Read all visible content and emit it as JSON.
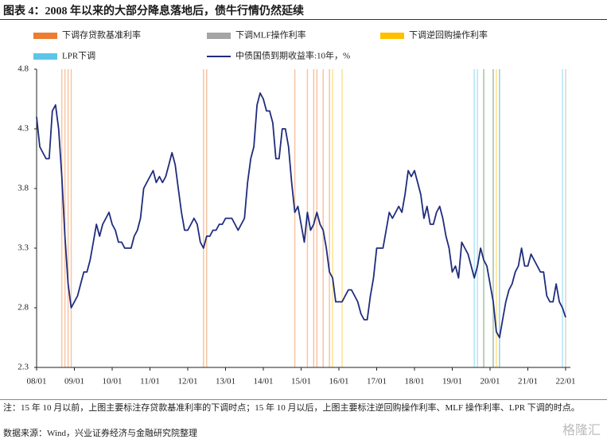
{
  "chart_data": {
    "type": "line",
    "title": "图表 4：2008 年以来的大部分降息落地后，债牛行情仍然延续",
    "note": "注：15 年 10 月以前，上图主要标注存贷款基准利率的下调时点；15 年 10 月以后，上图主要标注逆回购操作利率、MLF 操作利率、LPR 下调的时点。",
    "source": "数据来源：Wind，兴业证券经济与金融研究院整理",
    "watermark": "格隆汇",
    "xlim": [
      "08/01",
      "22/01"
    ],
    "xticks": [
      "08/01",
      "09/01",
      "10/01",
      "11/01",
      "12/01",
      "13/01",
      "14/01",
      "15/01",
      "16/01",
      "17/01",
      "18/01",
      "19/01",
      "20/01",
      "21/01",
      "22/01"
    ],
    "ylim": [
      2.3,
      4.8
    ],
    "yticks": [
      2.3,
      2.8,
      3.3,
      3.8,
      4.3,
      4.8
    ],
    "x": [
      "08/01",
      "08/02",
      "08/03",
      "08/04",
      "08/05",
      "08/06",
      "08/07",
      "08/08",
      "08/09",
      "08/10",
      "08/11",
      "08/12",
      "09/01",
      "09/02",
      "09/03",
      "09/04",
      "09/05",
      "09/06",
      "09/07",
      "09/08",
      "09/09",
      "09/10",
      "09/11",
      "09/12",
      "10/01",
      "10/02",
      "10/03",
      "10/04",
      "10/05",
      "10/06",
      "10/07",
      "10/08",
      "10/09",
      "10/10",
      "10/11",
      "10/12",
      "11/01",
      "11/02",
      "11/03",
      "11/04",
      "11/05",
      "11/06",
      "11/07",
      "11/08",
      "11/09",
      "11/10",
      "11/11",
      "11/12",
      "12/01",
      "12/02",
      "12/03",
      "12/04",
      "12/05",
      "12/06",
      "12/07",
      "12/08",
      "12/09",
      "12/10",
      "12/11",
      "12/12",
      "13/01",
      "13/02",
      "13/03",
      "13/04",
      "13/05",
      "13/06",
      "13/07",
      "13/08",
      "13/09",
      "13/10",
      "13/11",
      "13/12",
      "14/01",
      "14/02",
      "14/03",
      "14/04",
      "14/05",
      "14/06",
      "14/07",
      "14/08",
      "14/09",
      "14/10",
      "14/11",
      "14/12",
      "15/01",
      "15/02",
      "15/03",
      "15/04",
      "15/05",
      "15/06",
      "15/07",
      "15/08",
      "15/09",
      "15/10",
      "15/11",
      "15/12",
      "16/01",
      "16/02",
      "16/03",
      "16/04",
      "16/05",
      "16/06",
      "16/07",
      "16/08",
      "16/09",
      "16/10",
      "16/11",
      "16/12",
      "17/01",
      "17/02",
      "17/03",
      "17/04",
      "17/05",
      "17/06",
      "17/07",
      "17/08",
      "17/09",
      "17/10",
      "17/11",
      "17/12",
      "18/01",
      "18/02",
      "18/03",
      "18/04",
      "18/05",
      "18/06",
      "18/07",
      "18/08",
      "18/09",
      "18/10",
      "18/11",
      "18/12",
      "19/01",
      "19/02",
      "19/03",
      "19/04",
      "19/05",
      "19/06",
      "19/07",
      "19/08",
      "19/09",
      "19/10",
      "19/11",
      "19/12",
      "20/01",
      "20/02",
      "20/03",
      "20/04",
      "20/05",
      "20/06",
      "20/07",
      "20/08",
      "20/09",
      "20/10",
      "20/11",
      "20/12",
      "21/01",
      "21/02",
      "21/03",
      "21/04",
      "21/05",
      "21/06",
      "21/07",
      "21/08",
      "21/09",
      "21/10",
      "21/11",
      "21/12",
      "22/01"
    ],
    "series": [
      {
        "name": "中债国债到期收益率:10年，%",
        "color": "#1f2c7c",
        "values": [
          4.4,
          4.15,
          4.1,
          4.05,
          4.05,
          4.45,
          4.5,
          4.3,
          3.9,
          3.4,
          3.0,
          2.8,
          2.85,
          2.9,
          3.0,
          3.1,
          3.1,
          3.2,
          3.35,
          3.5,
          3.4,
          3.5,
          3.55,
          3.6,
          3.5,
          3.45,
          3.35,
          3.35,
          3.3,
          3.3,
          3.3,
          3.4,
          3.45,
          3.55,
          3.8,
          3.85,
          3.9,
          3.95,
          3.85,
          3.9,
          3.85,
          3.9,
          4.0,
          4.1,
          4.0,
          3.8,
          3.6,
          3.45,
          3.45,
          3.5,
          3.55,
          3.5,
          3.35,
          3.3,
          3.4,
          3.4,
          3.45,
          3.45,
          3.5,
          3.5,
          3.55,
          3.55,
          3.55,
          3.5,
          3.45,
          3.5,
          3.55,
          3.85,
          4.05,
          4.15,
          4.5,
          4.6,
          4.55,
          4.45,
          4.45,
          4.35,
          4.05,
          4.05,
          4.3,
          4.3,
          4.15,
          3.85,
          3.6,
          3.65,
          3.5,
          3.35,
          3.6,
          3.45,
          3.5,
          3.6,
          3.5,
          3.45,
          3.3,
          3.1,
          3.05,
          2.85,
          2.85,
          2.85,
          2.9,
          2.95,
          2.95,
          2.9,
          2.85,
          2.75,
          2.7,
          2.7,
          2.9,
          3.05,
          3.3,
          3.3,
          3.3,
          3.45,
          3.6,
          3.55,
          3.6,
          3.65,
          3.6,
          3.75,
          3.95,
          3.9,
          3.95,
          3.85,
          3.75,
          3.55,
          3.65,
          3.5,
          3.5,
          3.6,
          3.65,
          3.55,
          3.4,
          3.3,
          3.1,
          3.15,
          3.05,
          3.35,
          3.3,
          3.25,
          3.15,
          3.05,
          3.15,
          3.3,
          3.2,
          3.15,
          3.0,
          2.85,
          2.6,
          2.55,
          2.7,
          2.85,
          2.95,
          3.0,
          3.1,
          3.15,
          3.3,
          3.15,
          3.15,
          3.25,
          3.2,
          3.15,
          3.1,
          3.1,
          2.9,
          2.85,
          2.85,
          3.0,
          2.85,
          2.8,
          2.72
        ]
      }
    ],
    "events": [
      {
        "name": "下调存贷款基准利率",
        "color": "#ed7d31",
        "dates": [
          "08/09",
          "08/10",
          "08/11",
          "08/12",
          "12/06",
          "12/07",
          "14/11",
          "15/03",
          "15/05",
          "15/06",
          "15/08",
          "15/10"
        ]
      },
      {
        "name": "下调MLF操作利率",
        "color": "#a5a5a5",
        "dates": [
          "19/11",
          "20/02",
          "20/04",
          "22/01"
        ]
      },
      {
        "name": "下调逆回购操作利率",
        "color": "#ffc000",
        "dates": [
          "15/11",
          "16/02",
          "19/11",
          "20/02",
          "20/03"
        ]
      },
      {
        "name": "LPR下调",
        "color": "#5bc6e8",
        "dates": [
          "19/08",
          "19/09",
          "19/11",
          "20/02",
          "20/04",
          "21/12"
        ]
      }
    ]
  }
}
